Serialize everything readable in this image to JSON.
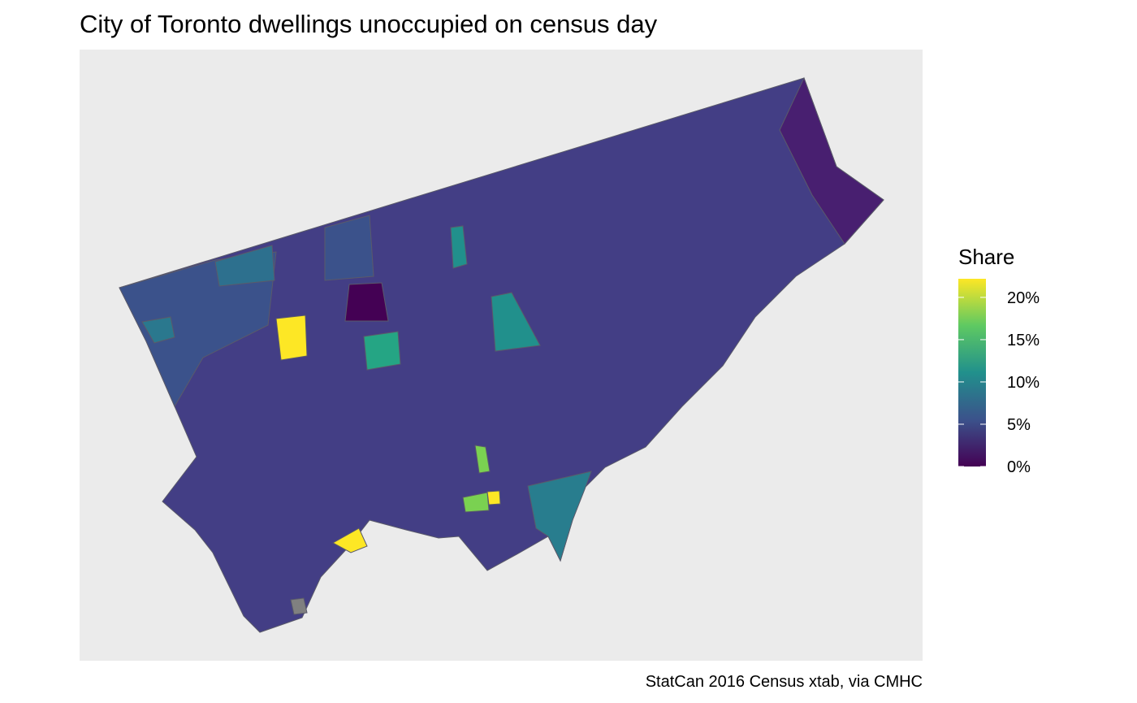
{
  "map": {
    "title": "City of Toronto dwellings unoccupied on census day",
    "caption": "StatCan 2016 Census xtab, via CMHC",
    "legend": {
      "title": "Share",
      "lim": [
        0,
        22.2
      ],
      "ticks": [
        {
          "value": 0,
          "label": "0%"
        },
        {
          "value": 5,
          "label": "5%"
        },
        {
          "value": 10,
          "label": "10%"
        },
        {
          "value": 15,
          "label": "15%"
        },
        {
          "value": 20,
          "label": "20%"
        }
      ],
      "colors": [
        "#440154",
        "#3b528b",
        "#21908c",
        "#5ec962",
        "#fde725"
      ]
    }
  }
}
